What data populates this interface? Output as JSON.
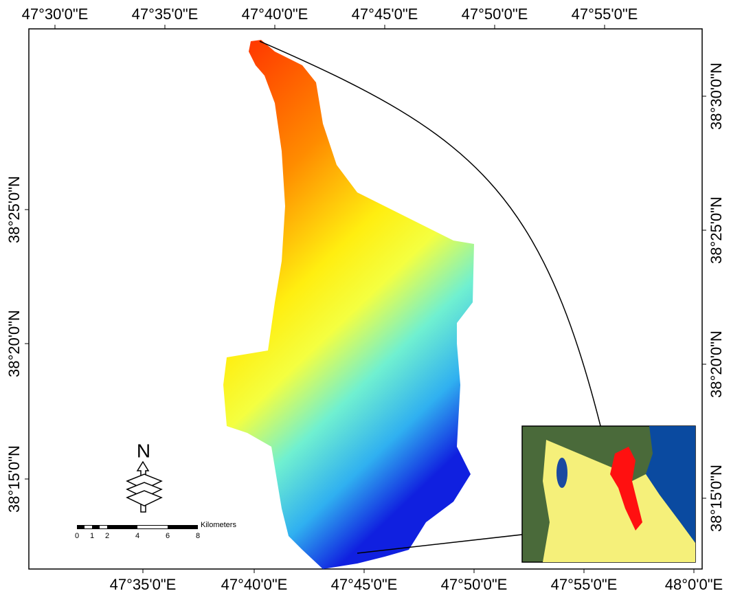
{
  "top_labels": [
    "47°30'0\"E",
    "47°35'0\"E",
    "47°40'0\"E",
    "47°45'0\"E",
    "47°50'0\"E",
    "47°55'0\"E"
  ],
  "bottom_labels": [
    "47°35'0\"E",
    "47°40'0\"E",
    "47°45'0\"E",
    "47°50'0\"E",
    "47°55'0\"E",
    "48°0'0\"E"
  ],
  "left_labels": [
    "38°25'0\"N",
    "38°20'0\"N",
    "38°15'0\"N"
  ],
  "right_labels": [
    "38°30'0\"N",
    "38°25'0\"N",
    "38°20'0\"N",
    "38°15'0\"N"
  ],
  "north_arrow": "N",
  "scale_bar": {
    "labels": [
      "0",
      "1",
      "2",
      "4",
      "6",
      "8"
    ],
    "unit": "Kilometers"
  }
}
